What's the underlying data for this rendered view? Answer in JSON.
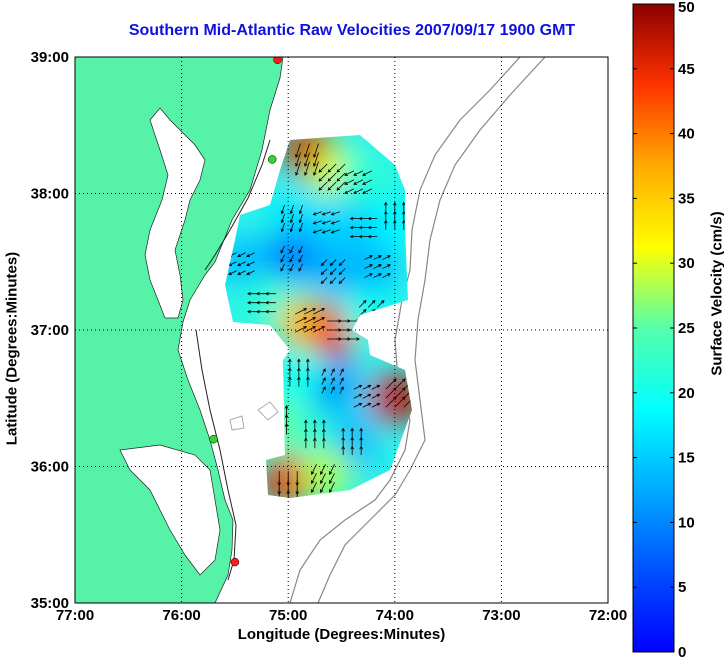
{
  "chart_data": {
    "type": "heatmap",
    "title": "Southern Mid-Atlantic Raw Velocities 2007/09/17 1900 GMT",
    "xlabel": "Longitude (Degrees:Minutes)",
    "ylabel": "Latitude (Degrees:Minutes)",
    "colorbar_label": "Surface Velocity (cm/s)",
    "x_ticks": [
      {
        "value": -77,
        "label": "77:00"
      },
      {
        "value": -76,
        "label": "76:00"
      },
      {
        "value": -75,
        "label": "75:00"
      },
      {
        "value": -74,
        "label": "74:00"
      },
      {
        "value": -73,
        "label": "73:00"
      },
      {
        "value": -72,
        "label": "72:00"
      }
    ],
    "y_ticks": [
      {
        "value": 35,
        "label": "35:00"
      },
      {
        "value": 36,
        "label": "36:00"
      },
      {
        "value": 37,
        "label": "37:00"
      },
      {
        "value": 38,
        "label": "38:00"
      },
      {
        "value": 39,
        "label": "39:00"
      }
    ],
    "xlim": [
      -77,
      -72
    ],
    "ylim": [
      35,
      39
    ],
    "colorbar_ticks": [
      0,
      5,
      10,
      15,
      20,
      25,
      30,
      35,
      40,
      45,
      50
    ],
    "colorbar_range": [
      0,
      50
    ],
    "colormap": "jet",
    "grid": true,
    "colors": {
      "land": "#55f2a8",
      "title": "#1010e0",
      "station_green": "#2fd62f",
      "station_red": "#ff1a1a"
    },
    "stations": [
      {
        "lon": -75.1,
        "lat": 38.98,
        "color": "red"
      },
      {
        "lon": -75.15,
        "lat": 38.25,
        "color": "green"
      },
      {
        "lon": -75.7,
        "lat": 36.2,
        "color": "green"
      },
      {
        "lon": -75.5,
        "lat": 35.3,
        "color": "red"
      }
    ],
    "velocity_field": [
      {
        "lon": -74.8,
        "lat": 38.3,
        "speed": 46,
        "u": -1,
        "v": -3
      },
      {
        "lon": -74.55,
        "lat": 38.15,
        "speed": 30,
        "u": -2,
        "v": -2
      },
      {
        "lon": -74.3,
        "lat": 38.1,
        "speed": 22,
        "u": -2,
        "v": -1
      },
      {
        "lon": -74.95,
        "lat": 37.85,
        "speed": 17,
        "u": -1,
        "v": -3
      },
      {
        "lon": -74.6,
        "lat": 37.8,
        "speed": 16,
        "u": -3,
        "v": -1
      },
      {
        "lon": -74.25,
        "lat": 37.75,
        "speed": 15,
        "u": -2,
        "v": 0
      },
      {
        "lon": -74.0,
        "lat": 37.8,
        "speed": 18,
        "u": 0,
        "v": 2
      },
      {
        "lon": -75.4,
        "lat": 37.5,
        "speed": 14,
        "u": -2,
        "v": -1
      },
      {
        "lon": -74.95,
        "lat": 37.55,
        "speed": 10,
        "u": -1,
        "v": -2
      },
      {
        "lon": -74.55,
        "lat": 37.45,
        "speed": 13,
        "u": -1,
        "v": -1
      },
      {
        "lon": -74.2,
        "lat": 37.45,
        "speed": 14,
        "u": 2,
        "v": 1
      },
      {
        "lon": -75.2,
        "lat": 37.2,
        "speed": 22,
        "u": -1,
        "v": 0
      },
      {
        "lon": -74.85,
        "lat": 37.05,
        "speed": 36,
        "u": 2,
        "v": 1
      },
      {
        "lon": -74.55,
        "lat": 37.0,
        "speed": 44,
        "u": 3,
        "v": 0
      },
      {
        "lon": -74.25,
        "lat": 37.1,
        "speed": 20,
        "u": 1,
        "v": 1
      },
      {
        "lon": -74.6,
        "lat": 36.6,
        "speed": 8,
        "u": 1,
        "v": 2
      },
      {
        "lon": -74.9,
        "lat": 36.65,
        "speed": 20,
        "u": 0,
        "v": 2
      },
      {
        "lon": -74.3,
        "lat": 36.5,
        "speed": 15,
        "u": 2,
        "v": 1
      },
      {
        "lon": -74.0,
        "lat": 36.5,
        "speed": 47,
        "u": 2,
        "v": 2
      },
      {
        "lon": -75.1,
        "lat": 36.3,
        "speed": 26,
        "u": 0,
        "v": 1
      },
      {
        "lon": -74.75,
        "lat": 36.2,
        "speed": 22,
        "u": 0,
        "v": 2
      },
      {
        "lon": -74.4,
        "lat": 36.15,
        "speed": 14,
        "u": 0,
        "v": 2
      },
      {
        "lon": -75.0,
        "lat": 35.9,
        "speed": 45,
        "u": 0,
        "v": -2
      },
      {
        "lon": -74.65,
        "lat": 35.95,
        "speed": 28,
        "u": -1,
        "v": -2
      }
    ]
  }
}
